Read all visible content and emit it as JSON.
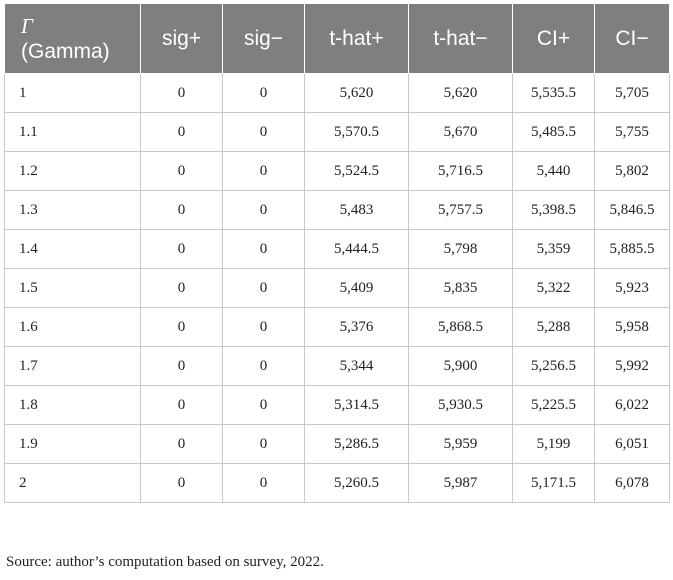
{
  "table": {
    "header": {
      "gamma_symbol": "Γ",
      "gamma_label": "(Gamma)",
      "columns": [
        "sig+",
        "sig−",
        "t-hat+",
        "t-hat−",
        "CI+",
        "CI−"
      ]
    },
    "rows": [
      [
        "1",
        "0",
        "0",
        "5,620",
        "5,620",
        "5,535.5",
        "5,705"
      ],
      [
        "1.1",
        "0",
        "0",
        "5,570.5",
        "5,670",
        "5,485.5",
        "5,755"
      ],
      [
        "1.2",
        "0",
        "0",
        "5,524.5",
        "5,716.5",
        "5,440",
        "5,802"
      ],
      [
        "1.3",
        "0",
        "0",
        "5,483",
        "5,757.5",
        "5,398.5",
        "5,846.5"
      ],
      [
        "1.4",
        "0",
        "0",
        "5,444.5",
        "5,798",
        "5,359",
        "5,885.5"
      ],
      [
        "1.5",
        "0",
        "0",
        "5,409",
        "5,835",
        "5,322",
        "5,923"
      ],
      [
        "1.6",
        "0",
        "0",
        "5,376",
        "5,868.5",
        "5,288",
        "5,958"
      ],
      [
        "1.7",
        "0",
        "0",
        "5,344",
        "5,900",
        "5,256.5",
        "5,992"
      ],
      [
        "1.8",
        "0",
        "0",
        "5,314.5",
        "5,930.5",
        "5,225.5",
        "6,022"
      ],
      [
        "1.9",
        "0",
        "0",
        "5,286.5",
        "5,959",
        "5,199",
        "6,051"
      ],
      [
        "2",
        "0",
        "0",
        "5,260.5",
        "5,987",
        "5,171.5",
        "6,078"
      ]
    ]
  },
  "source_note": "Source: author’s computation based on survey, 2022.",
  "colors": {
    "header_bg": "#7f7f7f",
    "header_text": "#ffffff",
    "grid": "#c8c8c8"
  }
}
